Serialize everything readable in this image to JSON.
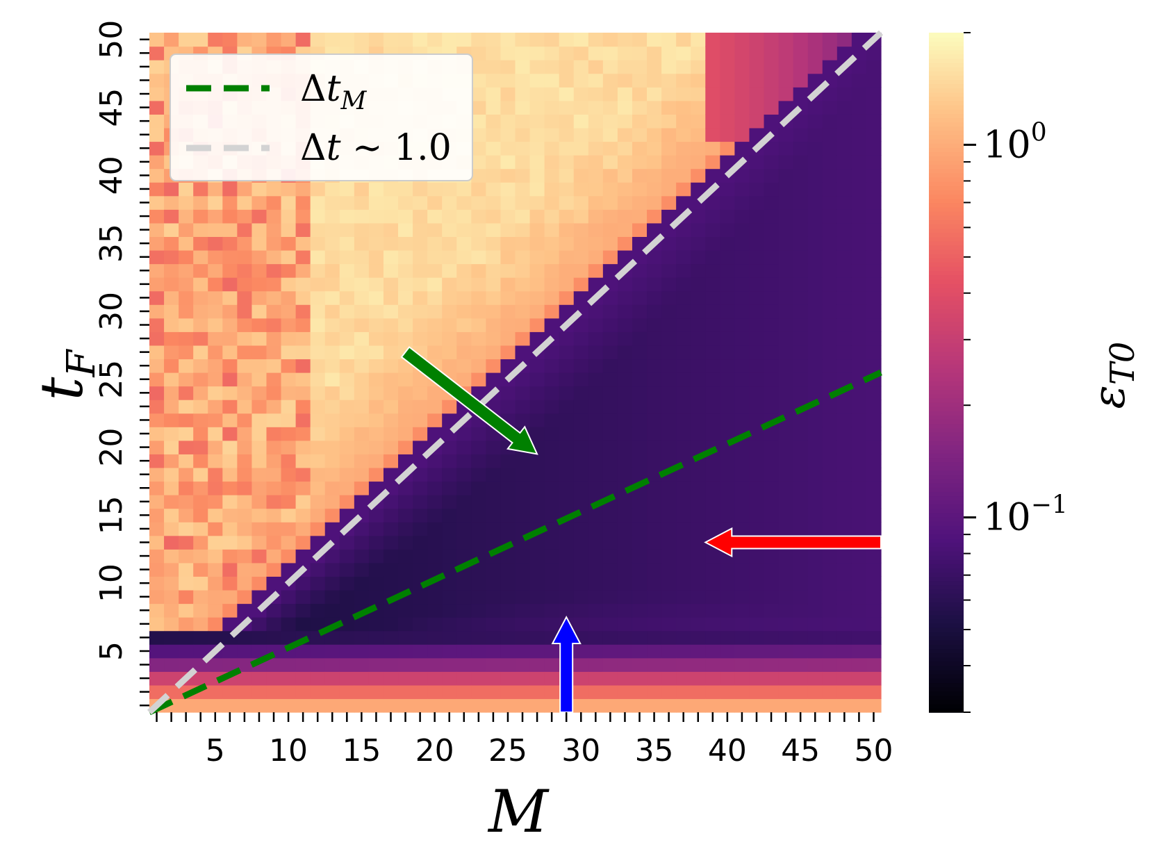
{
  "chart_data": {
    "type": "heatmap",
    "title": "",
    "xlabel": "M",
    "ylabel": "t_F",
    "x_range": [
      1,
      50
    ],
    "y_range": [
      1,
      50
    ],
    "x_ticks": [
      "5",
      "10",
      "15",
      "20",
      "25",
      "30",
      "35",
      "40",
      "45",
      "50"
    ],
    "y_ticks": [
      "5",
      "10",
      "15",
      "20",
      "25",
      "30",
      "35",
      "40",
      "45",
      "50"
    ],
    "colorbar": {
      "label": "εT0",
      "scale": "log",
      "colormap": "magma",
      "range": [
        0.03,
        2.0
      ],
      "tick_labels": [
        "10^0",
        "10^-1"
      ]
    },
    "lines": [
      {
        "name": "ΔtM",
        "style": "dashed",
        "color": "#008000",
        "x": [
          1,
          50
        ],
        "y": [
          1,
          25
        ]
      },
      {
        "name": "Δt ∼ 1.0",
        "style": "dashed",
        "color": "#d3d3d3",
        "x": [
          1,
          50
        ],
        "y": [
          1,
          50
        ]
      }
    ],
    "arrows": [
      {
        "color": "#008000",
        "from": [
          17.5,
          26.5
        ],
        "to": [
          26.5,
          19
        ]
      },
      {
        "color": "#ff0000",
        "from": [
          50,
          12.5
        ],
        "to": [
          38,
          12.5
        ]
      },
      {
        "color": "#0000ff",
        "from": [
          28.5,
          0
        ],
        "to": [
          28.5,
          7
        ]
      }
    ],
    "legend": {
      "placement": "top-left",
      "entries": [
        "ΔtM",
        "Δt ∼ 1.0"
      ]
    }
  }
}
